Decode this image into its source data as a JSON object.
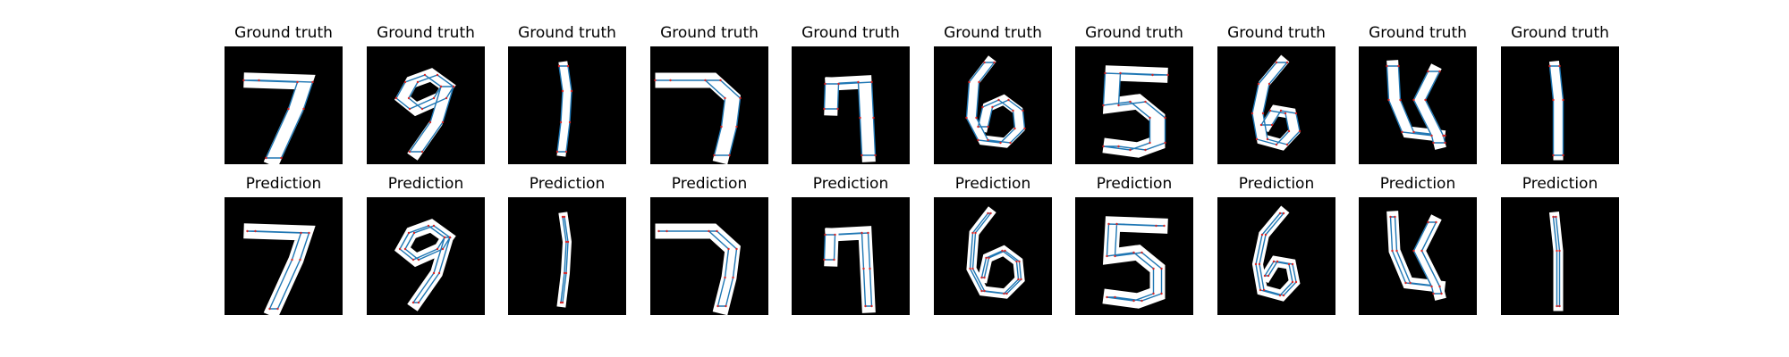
{
  "figure": {
    "rows": [
      {
        "title": "Ground truth",
        "panels": [
          {
            "digit": "7"
          },
          {
            "digit": "9"
          },
          {
            "digit": "1"
          },
          {
            "digit": "7"
          },
          {
            "digit": "7"
          },
          {
            "digit": "6"
          },
          {
            "digit": "5"
          },
          {
            "digit": "6"
          },
          {
            "digit": "4"
          },
          {
            "digit": "1"
          }
        ]
      },
      {
        "title": "Prediction",
        "panels": [
          {
            "digit": "7"
          },
          {
            "digit": "9"
          },
          {
            "digit": "1"
          },
          {
            "digit": "7"
          },
          {
            "digit": "7"
          },
          {
            "digit": "6"
          },
          {
            "digit": "5"
          },
          {
            "digit": "6"
          },
          {
            "digit": "4"
          },
          {
            "digit": "1"
          }
        ]
      }
    ],
    "colors": {
      "background": "#000000",
      "stroke": "#ffffff",
      "contour": "#1f77b4",
      "vertex": "#d62728"
    }
  }
}
